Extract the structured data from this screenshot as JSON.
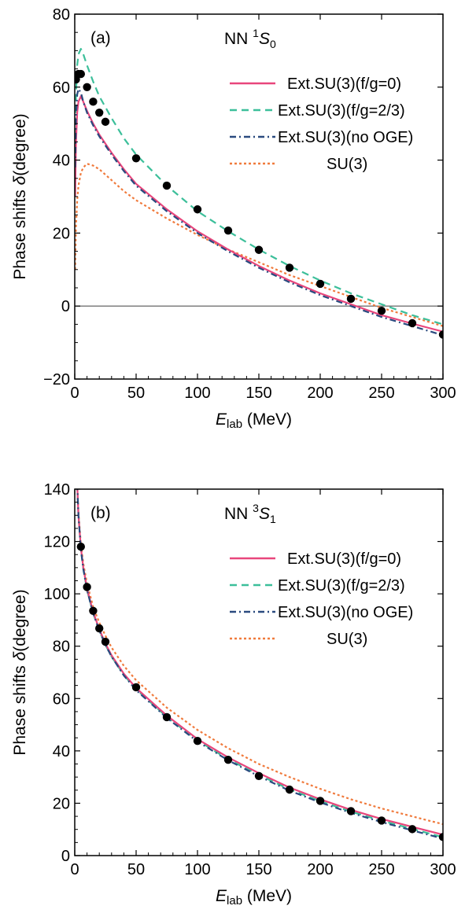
{
  "colors": {
    "fg0": "#e8467c",
    "fg23": "#3cbf9a",
    "nooge": "#2a4a7f",
    "su3": "#f07a3c",
    "points": "#000000"
  },
  "series_styles": [
    {
      "name": "Ext.SU(3)(f/g=0)",
      "color": "#e8467c",
      "dash": "solid"
    },
    {
      "name": "Ext.SU(3)(f/g=2/3)",
      "color": "#3cbf9a",
      "dash": "dashed"
    },
    {
      "name": "Ext.SU(3)(no OGE)",
      "color": "#2a4a7f",
      "dash": "dash-dot"
    },
    {
      "name": "SU(3)",
      "color": "#f07a3c",
      "dash": "dotted"
    }
  ],
  "chart_data": [
    {
      "type": "line",
      "panel_label": "(a)",
      "title_prefix": "NN ",
      "title_sup": "1",
      "title_letter": "S",
      "title_sub": "0",
      "xlabel_main": "E",
      "xlabel_sub": "lab",
      "xlabel_unit": " (MeV)",
      "ylabel_main": "Phase shifts ",
      "ylabel_symbol": "δ",
      "ylabel_unit": "(degree)",
      "xlim": [
        0,
        300
      ],
      "ylim": [
        -20,
        80
      ],
      "xticks": [
        0,
        50,
        100,
        150,
        200,
        250,
        300
      ],
      "yticks": [
        -20,
        0,
        20,
        40,
        60,
        80
      ],
      "ytick_labels": [
        "−20",
        "0",
        "20",
        "40",
        "60",
        "80"
      ],
      "zero_line": true,
      "legend_position": "top-right",
      "series": [
        {
          "name": "Ext.SU(3)(f/g=0)",
          "x": [
            0.3,
            1,
            2,
            3,
            5,
            7,
            10,
            15,
            20,
            25,
            30,
            40,
            50,
            75,
            100,
            125,
            150,
            175,
            200,
            225,
            250,
            275,
            300
          ],
          "values": [
            30,
            45,
            53,
            56,
            57.5,
            56,
            53.5,
            50,
            47,
            44.5,
            42,
            37.5,
            33.5,
            26.5,
            20.5,
            15.5,
            11,
            7,
            3.5,
            0.5,
            -2.5,
            -4.8,
            -7
          ]
        },
        {
          "name": "Ext.SU(3)(f/g=2/3)",
          "x": [
            0.3,
            1,
            2,
            3,
            5,
            7,
            10,
            15,
            20,
            25,
            30,
            40,
            50,
            75,
            100,
            125,
            150,
            175,
            200,
            225,
            250,
            275,
            300
          ],
          "values": [
            40,
            58,
            66,
            69,
            70.5,
            69,
            66,
            61.5,
            57.5,
            54.5,
            51.5,
            46,
            41.5,
            33,
            26,
            20.5,
            15.5,
            11,
            7,
            3.5,
            0.5,
            -2.5,
            -5
          ]
        },
        {
          "name": "Ext.SU(3)(no OGE)",
          "x": [
            0.3,
            1,
            2,
            3,
            5,
            7,
            10,
            15,
            20,
            25,
            30,
            40,
            50,
            75,
            100,
            125,
            150,
            175,
            200,
            225,
            250,
            275,
            300
          ],
          "values": [
            38,
            52,
            58,
            59.5,
            58.5,
            56,
            53,
            49.5,
            46.5,
            44,
            41.5,
            37,
            33,
            26,
            20,
            15,
            10.5,
            6.5,
            3,
            0,
            -3,
            -5.5,
            -8
          ]
        },
        {
          "name": "SU(3)",
          "x": [
            0.3,
            1,
            2,
            3,
            5,
            7,
            10,
            15,
            20,
            25,
            30,
            40,
            50,
            75,
            100,
            125,
            150,
            175,
            200,
            225,
            250,
            275,
            300
          ],
          "values": [
            10,
            22,
            29,
            33,
            36.5,
            38,
            39,
            38.5,
            37.5,
            36,
            34.5,
            31.5,
            29,
            24,
            19.5,
            15.5,
            12,
            8.5,
            5.5,
            2.5,
            -0.5,
            -3,
            -5.5
          ]
        }
      ],
      "points": {
        "x": [
          1,
          3,
          5,
          10,
          15,
          20,
          25,
          50,
          75,
          100,
          125,
          150,
          175,
          200,
          225,
          250,
          275,
          300
        ],
        "y": [
          62.1,
          63.6,
          63.6,
          60,
          56,
          53,
          50.5,
          40.5,
          33,
          26.5,
          20.7,
          15.4,
          10.5,
          6.1,
          2,
          -1.3,
          -4.7,
          -7.8
        ]
      }
    },
    {
      "type": "line",
      "panel_label": "(b)",
      "title_prefix": "NN ",
      "title_sup": "3",
      "title_letter": "S",
      "title_sub": "1",
      "xlabel_main": "E",
      "xlabel_sub": "lab",
      "xlabel_unit": " (MeV)",
      "ylabel_main": "Phase shifts ",
      "ylabel_symbol": "δ",
      "ylabel_unit": "(degree)",
      "xlim": [
        0,
        300
      ],
      "ylim": [
        0,
        140
      ],
      "xticks": [
        0,
        50,
        100,
        150,
        200,
        250,
        300
      ],
      "yticks": [
        0,
        20,
        40,
        60,
        80,
        100,
        120,
        140
      ],
      "ytick_labels": [
        "0",
        "20",
        "40",
        "60",
        "80",
        "100",
        "120",
        "140"
      ],
      "zero_line": false,
      "legend_position": "top-right",
      "series": [
        {
          "name": "Ext.SU(3)(f/g=0)",
          "x": [
            2,
            3,
            5,
            7,
            10,
            15,
            20,
            25,
            30,
            40,
            50,
            75,
            100,
            125,
            150,
            175,
            200,
            225,
            250,
            275,
            300
          ],
          "values": [
            142,
            130,
            117.5,
            110,
            102,
            93,
            86.5,
            81,
            76.5,
            69.5,
            64,
            53.5,
            44.5,
            37.5,
            31.5,
            26,
            21.5,
            17.5,
            14,
            11,
            8
          ]
        },
        {
          "name": "Ext.SU(3)(f/g=2/3)",
          "x": [
            2,
            3,
            5,
            7,
            10,
            15,
            20,
            25,
            30,
            40,
            50,
            75,
            100,
            125,
            150,
            175,
            200,
            225,
            250,
            275,
            300
          ],
          "values": [
            142,
            130,
            117,
            109.5,
            101.5,
            92.5,
            86,
            80.5,
            76,
            69,
            63.5,
            53,
            44,
            36.8,
            30.8,
            25.3,
            20.8,
            16.8,
            13.3,
            10.2,
            7
          ]
        },
        {
          "name": "Ext.SU(3)(no OGE)",
          "x": [
            2,
            3,
            5,
            7,
            10,
            15,
            20,
            25,
            30,
            40,
            50,
            75,
            100,
            125,
            150,
            175,
            200,
            225,
            250,
            275,
            300
          ],
          "values": [
            142,
            130,
            117,
            109.5,
            101.5,
            92.5,
            86,
            80.5,
            76,
            68.8,
            63.2,
            52.6,
            43.6,
            36.4,
            30.3,
            24.8,
            20.3,
            16.3,
            12.8,
            9.6,
            6.5
          ]
        },
        {
          "name": "SU(3)",
          "x": [
            2,
            3,
            5,
            7,
            10,
            15,
            20,
            25,
            30,
            40,
            50,
            75,
            100,
            125,
            150,
            175,
            200,
            225,
            250,
            275,
            300
          ],
          "values": [
            142,
            131,
            119,
            111.5,
            104,
            95,
            89,
            84,
            79.5,
            72.5,
            67,
            56.5,
            48,
            41,
            35,
            30,
            25.5,
            21.5,
            18,
            15,
            12
          ]
        }
      ],
      "points": {
        "x": [
          5,
          10,
          15,
          20,
          25,
          50,
          75,
          100,
          125,
          150,
          175,
          200,
          225,
          250,
          275,
          300
        ],
        "y": [
          118,
          102.6,
          93.5,
          86.8,
          81.7,
          64.3,
          52.9,
          43.8,
          36.6,
          30.4,
          25.2,
          20.9,
          17,
          13.4,
          10.1,
          7.1
        ]
      }
    }
  ]
}
